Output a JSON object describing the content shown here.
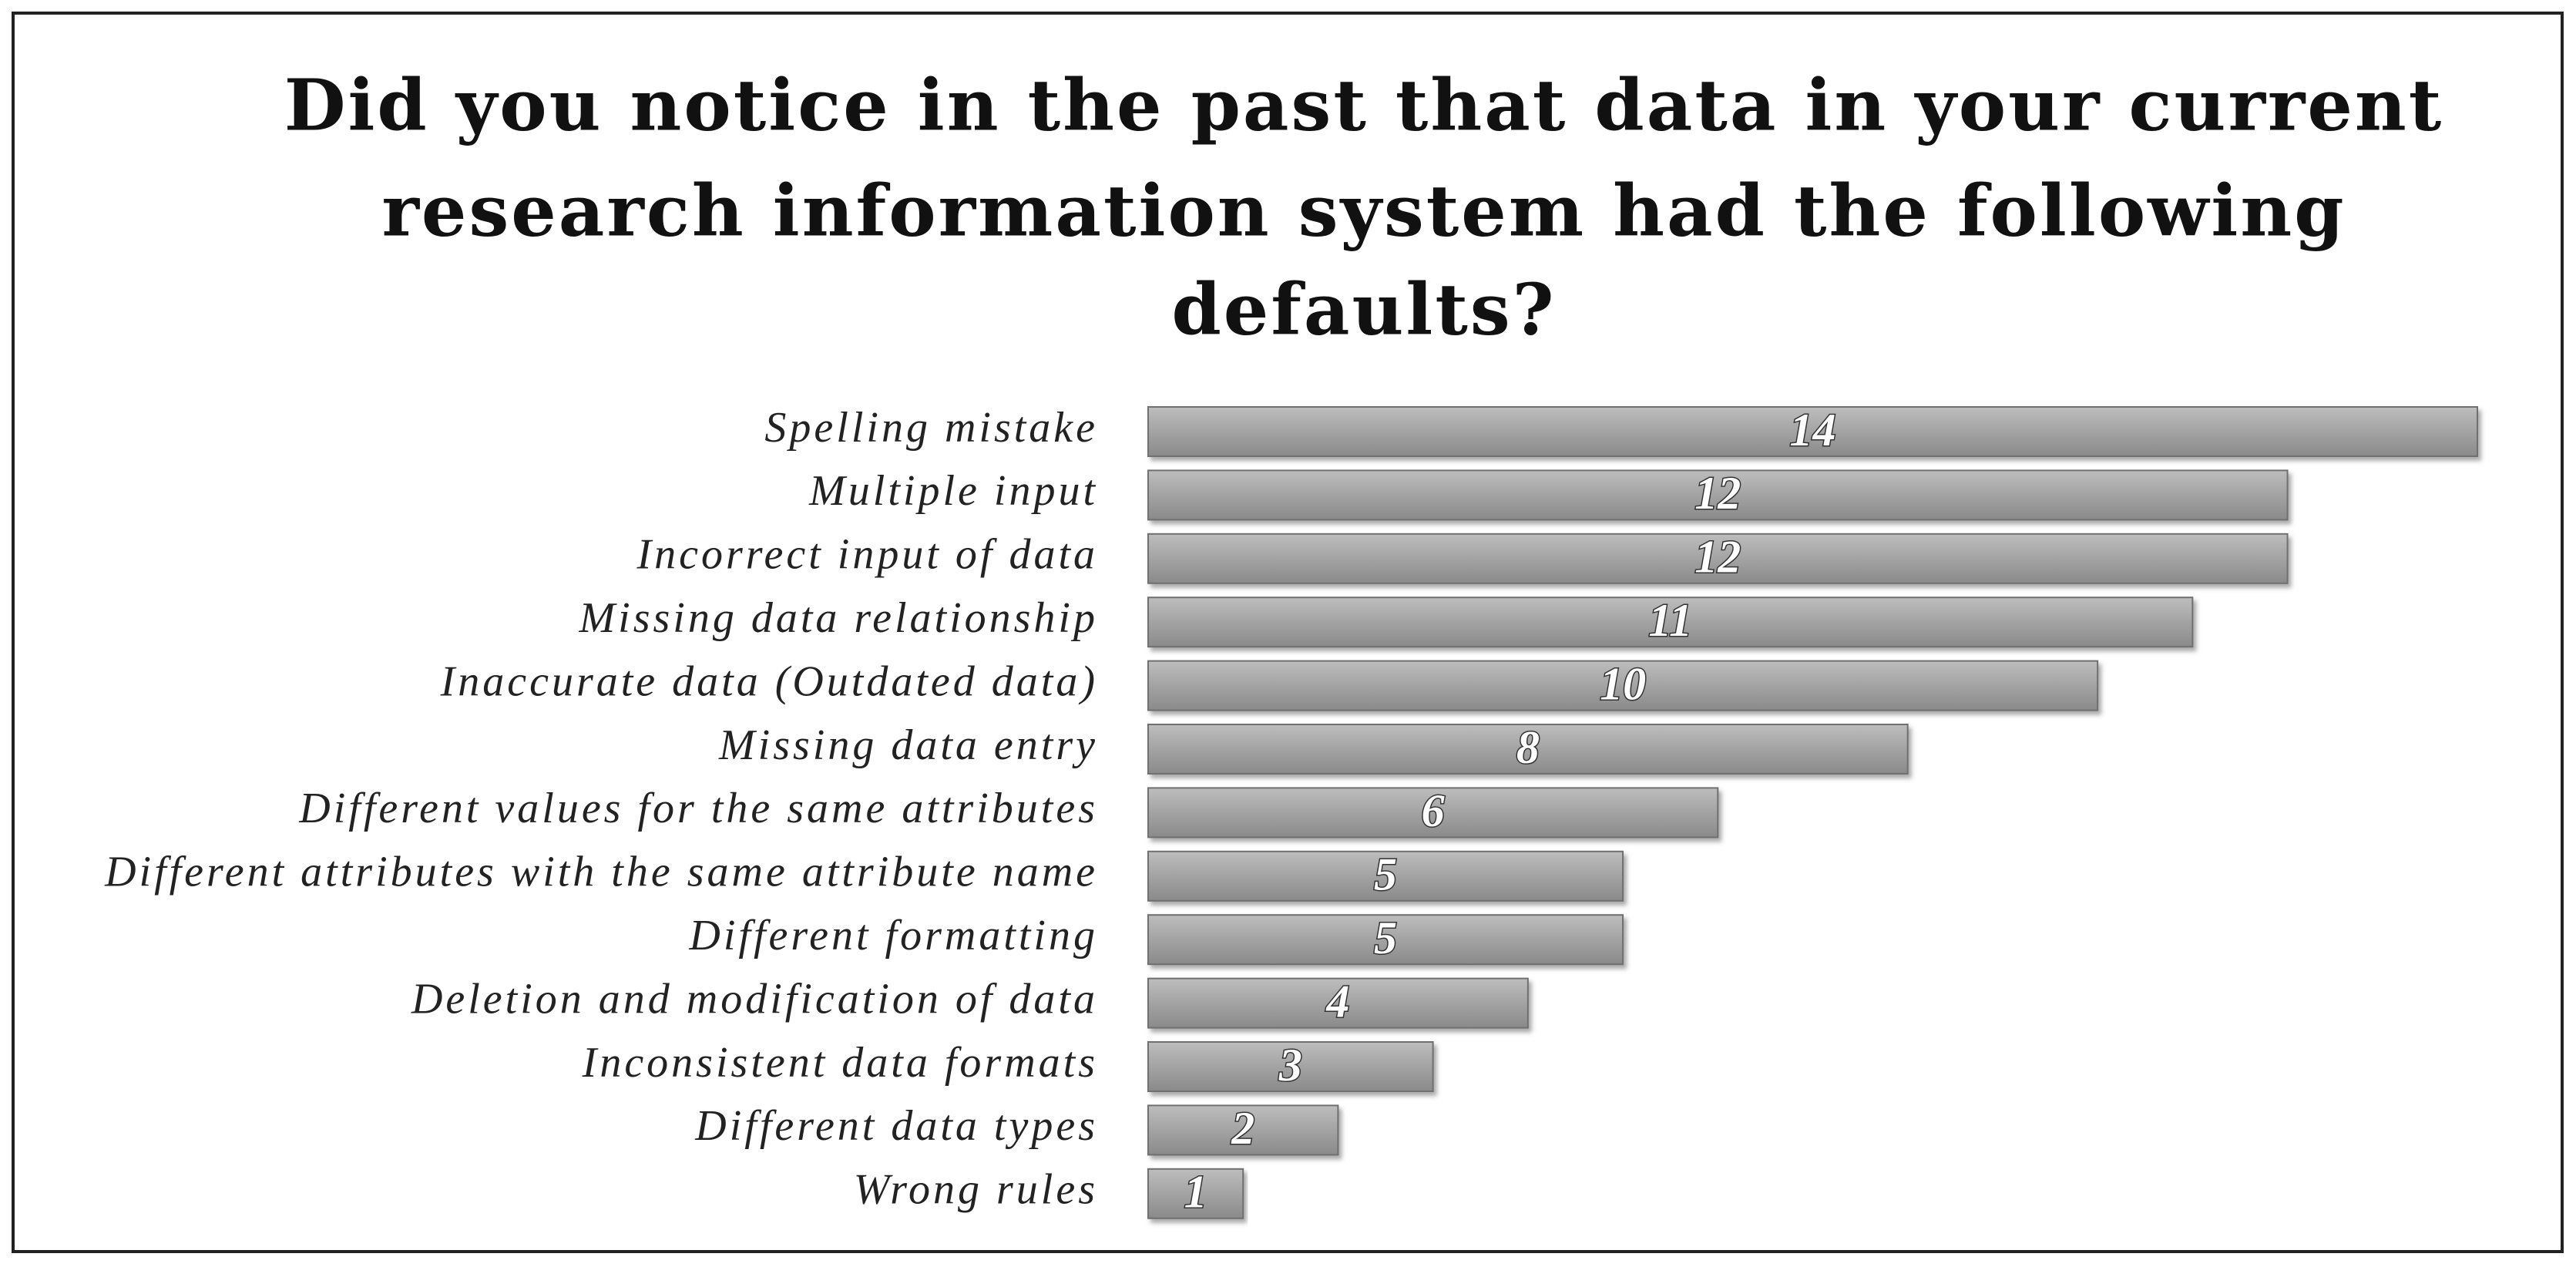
{
  "chart_data": {
    "type": "bar",
    "orientation": "horizontal",
    "title": [
      "Did you notice in the past that data in your current",
      "research information system had the following",
      "defaults?"
    ],
    "categories": [
      "Spelling mistake",
      "Multiple input",
      "Incorrect input of data",
      "Missing data relationship",
      "Inaccurate data (Outdated data)",
      "Missing data entry",
      "Different values for the same attributes",
      "Different attributes with the same attribute name",
      "Different formatting",
      "Deletion and modification of data",
      "Inconsistent data formats",
      "Different data types",
      "Wrong rules"
    ],
    "values": [
      14,
      12,
      12,
      11,
      10,
      8,
      6,
      5,
      5,
      4,
      3,
      2,
      1
    ],
    "color": "#a3a3a3"
  }
}
